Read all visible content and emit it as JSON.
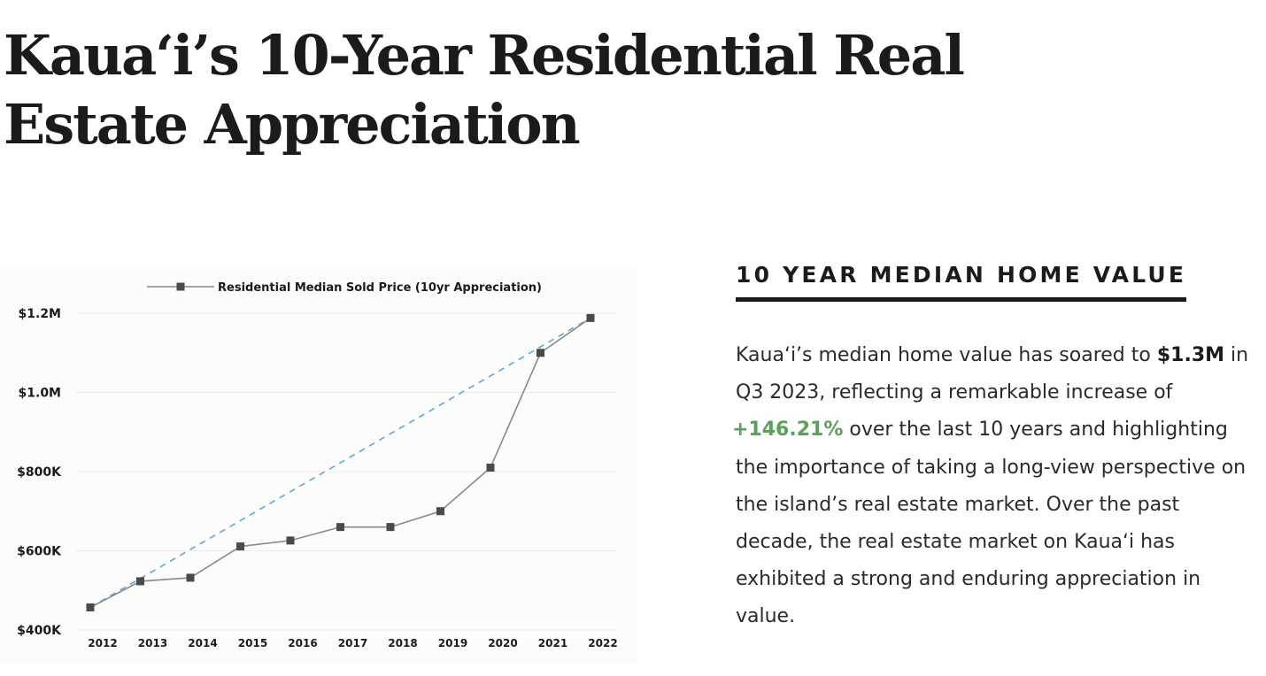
{
  "page": {
    "title": "Kaua‘i’s 10-Year Residential Real Estate Appreciation"
  },
  "panel": {
    "heading": "10 YEAR MEDIAN HOME VALUE",
    "text_1": "Kaua‘i’s median home value has soared to",
    "value_1": "$1.3M",
    "text_2": "in Q3 2023, reflecting a remarkable increase of",
    "value_2": "+146.21%",
    "text_3": "over the last 10 years and highlighting the importance of taking a long-view perspective on the island’s real estate market. Over the past decade, the real estate market on Kaua‘i has exhibited a strong and enduring appreciation in value."
  },
  "colors": {
    "series_line": "#8a8a8a",
    "marker": "#4a4a4a",
    "trend_line": "#5aa9dc",
    "gridline": "#ebebeb",
    "highlight_green": "#5aa05a"
  },
  "chart_data": {
    "type": "line",
    "title": "",
    "xlabel": "",
    "ylabel": "",
    "x": [
      2012,
      2013,
      2014,
      2015,
      2016,
      2017,
      2018,
      2019,
      2020,
      2021,
      2022
    ],
    "x_tick_labels": [
      "2012",
      "2013",
      "2014",
      "2015",
      "2016",
      "2017",
      "2018",
      "2019",
      "2020",
      "2021",
      "2022"
    ],
    "ylim": [
      400000,
      1200000
    ],
    "y_ticks": [
      400000,
      600000,
      800000,
      1000000,
      1200000
    ],
    "y_tick_labels": [
      "$400K",
      "$600K",
      "$800K",
      "$1.0M",
      "$1.2M"
    ],
    "grid": true,
    "legend_position": "top-center",
    "series": [
      {
        "name": "Residential Median Sold Price (10yr Appreciation)",
        "marker": "square",
        "values": [
          457000,
          523000,
          532000,
          611000,
          626000,
          660000,
          660000,
          700000,
          810000,
          1100000,
          1188000
        ]
      }
    ],
    "trendline": {
      "style": "dashed",
      "from": [
        2012,
        457000
      ],
      "to": [
        2022,
        1188000
      ]
    }
  }
}
